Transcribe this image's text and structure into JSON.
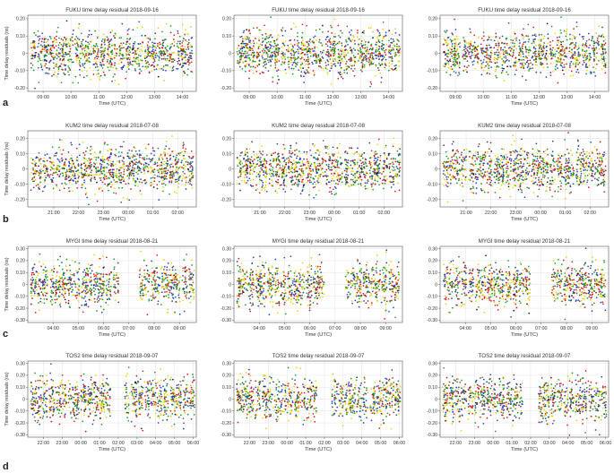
{
  "figure": {
    "row_labels": [
      "a",
      "b",
      "c",
      "d"
    ],
    "series_colors": [
      "#1f3fbf",
      "#d01818",
      "#1a9a1a",
      "#e8d000",
      "#111111"
    ]
  },
  "chart_data": [
    {
      "row": 0,
      "col": 0,
      "type": "scatter",
      "title": "FUKU time delay residual 2018-09-16",
      "xlabel": "Time (UTC)",
      "ylabel": "Time delay residuals (ns)",
      "xlim": [
        "08:27",
        "14:30"
      ],
      "ylim": [
        -0.22,
        0.22
      ],
      "x_ticks": [
        "09:00",
        "10:00",
        "11:00",
        "12:00",
        "13:00",
        "14:00"
      ],
      "y_ticks": [
        "-0.20",
        "-0.10",
        "0",
        "0.10",
        "0.20"
      ],
      "gaps": []
    },
    {
      "row": 0,
      "col": 1,
      "type": "scatter",
      "title": "FUKU time delay residual 2018-09-16",
      "xlabel": "Time (UTC)",
      "ylabel": "",
      "xlim": [
        "08:27",
        "14:30"
      ],
      "ylim": [
        -0.22,
        0.22
      ],
      "x_ticks": [
        "09:00",
        "10:00",
        "11:00",
        "12:00",
        "13:00",
        "14:00"
      ],
      "y_ticks": [
        "-0.20",
        "-0.10",
        "0",
        "0.10",
        "0.20"
      ],
      "gaps": []
    },
    {
      "row": 0,
      "col": 2,
      "type": "scatter",
      "title": "FUKU time delay residual 2018-09-16",
      "xlabel": "Time (UTC)",
      "ylabel": "",
      "xlim": [
        "08:27",
        "14:30"
      ],
      "ylim": [
        -0.22,
        0.22
      ],
      "x_ticks": [
        "09:00",
        "10:00",
        "11:00",
        "12:00",
        "13:00",
        "14:00"
      ],
      "y_ticks": [
        "-0.20",
        "-0.10",
        "0",
        "0.10",
        "0.20"
      ],
      "gaps": []
    },
    {
      "row": 1,
      "col": 0,
      "type": "scatter",
      "title": "KUM2 time delay residual 2018-07-08",
      "xlabel": "Time (UTC)",
      "ylabel": "Time delay residuals (ns)",
      "xlim": [
        "19:57",
        "02:45"
      ],
      "ylim": [
        -0.25,
        0.25
      ],
      "x_ticks": [
        "21:00",
        "22:00",
        "23:00",
        "00:00",
        "01:00",
        "02:00"
      ],
      "y_ticks": [
        "-0.20",
        "-0.10",
        "0",
        "0.10",
        "0.20"
      ],
      "gaps": []
    },
    {
      "row": 1,
      "col": 1,
      "type": "scatter",
      "title": "KUM2 time delay residual 2018-07-08",
      "xlabel": "Time (UTC)",
      "ylabel": "",
      "xlim": [
        "19:57",
        "02:45"
      ],
      "ylim": [
        -0.25,
        0.25
      ],
      "x_ticks": [
        "21:00",
        "22:00",
        "23:00",
        "00:00",
        "01:00",
        "02:00"
      ],
      "y_ticks": [
        "-0.20",
        "-0.10",
        "0",
        "0.10",
        "0.20"
      ],
      "gaps": []
    },
    {
      "row": 1,
      "col": 2,
      "type": "scatter",
      "title": "KUM2 time delay residual 2018-07-08",
      "xlabel": "Time (UTC)",
      "ylabel": "",
      "xlim": [
        "19:57",
        "02:45"
      ],
      "ylim": [
        -0.25,
        0.25
      ],
      "x_ticks": [
        "21:00",
        "22:00",
        "23:00",
        "00:00",
        "01:00",
        "02:00"
      ],
      "y_ticks": [
        "-0.20",
        "-0.10",
        "0",
        "0.10",
        "0.20"
      ],
      "gaps": []
    },
    {
      "row": 2,
      "col": 0,
      "type": "scatter",
      "title": "MYGI time delay residual 2018-08-21",
      "xlabel": "Time (UTC)",
      "ylabel": "Time delay residuals (ns)",
      "xlim": [
        "03:00",
        "09:40"
      ],
      "ylim": [
        -0.32,
        0.32
      ],
      "x_ticks": [
        "04:00",
        "05:00",
        "06:00",
        "07:00",
        "08:00",
        "09:00"
      ],
      "y_ticks": [
        "-0.30",
        "-0.20",
        "-0.10",
        "0",
        "0.10",
        "0.20",
        "0.30"
      ],
      "gaps": [
        [
          "06:40",
          "07:25"
        ]
      ]
    },
    {
      "row": 2,
      "col": 1,
      "type": "scatter",
      "title": "MYGI time delay residual 2018-08-21",
      "xlabel": "Time (UTC)",
      "ylabel": "",
      "xlim": [
        "03:00",
        "09:40"
      ],
      "ylim": [
        -0.32,
        0.32
      ],
      "x_ticks": [
        "04:00",
        "05:00",
        "06:00",
        "07:00",
        "08:00",
        "09:00"
      ],
      "y_ticks": [
        "-0.30",
        "-0.20",
        "-0.10",
        "0",
        "0.10",
        "0.20",
        "0.30"
      ],
      "gaps": [
        [
          "06:40",
          "07:25"
        ]
      ]
    },
    {
      "row": 2,
      "col": 2,
      "type": "scatter",
      "title": "MYGI time delay residual 2018-08-21",
      "xlabel": "Time (UTC)",
      "ylabel": "",
      "xlim": [
        "03:00",
        "09:40"
      ],
      "ylim": [
        -0.32,
        0.32
      ],
      "x_ticks": [
        "04:00",
        "05:00",
        "06:00",
        "07:00",
        "08:00",
        "09:00"
      ],
      "y_ticks": [
        "-0.30",
        "-0.20",
        "-0.10",
        "0",
        "0.10",
        "0.20",
        "0.30"
      ],
      "gaps": [
        [
          "06:40",
          "07:25"
        ]
      ]
    },
    {
      "row": 3,
      "col": 0,
      "type": "scatter",
      "title": "TOS2 time delay residual 2018-09-07",
      "xlabel": "Time (UTC)",
      "ylabel": "Time delay residuals (ns)",
      "xlim": [
        "21:10",
        "06:10"
      ],
      "ylim": [
        -0.32,
        0.32
      ],
      "x_ticks": [
        "22:00",
        "23:00",
        "00:00",
        "01:00",
        "02:00",
        "03:00",
        "04:00",
        "05:00",
        "06:00"
      ],
      "y_ticks": [
        "-0.30",
        "-0.20",
        "-0.10",
        "0",
        "0.10",
        "0.20",
        "0.30"
      ],
      "gaps": [
        [
          "01:35",
          "02:20"
        ]
      ]
    },
    {
      "row": 3,
      "col": 1,
      "type": "scatter",
      "title": "TOS2 time delay residual 2018-09-07",
      "xlabel": "Time (UTC)",
      "ylabel": "",
      "xlim": [
        "21:10",
        "06:10"
      ],
      "ylim": [
        -0.32,
        0.32
      ],
      "x_ticks": [
        "22:00",
        "23:00",
        "00:00",
        "01:00",
        "02:00",
        "03:00",
        "04:00",
        "05:00",
        "06:00"
      ],
      "y_ticks": [
        "-0.30",
        "-0.20",
        "-0.10",
        "0",
        "0.10",
        "0.20",
        "0.30"
      ],
      "gaps": [
        [
          "01:35",
          "02:20"
        ]
      ]
    },
    {
      "row": 3,
      "col": 2,
      "type": "scatter",
      "title": "TOS2 time delay residual 2018-09-07",
      "xlabel": "Time (UTC)",
      "ylabel": "",
      "xlim": [
        "21:10",
        "06:10"
      ],
      "ylim": [
        -0.32,
        0.32
      ],
      "x_ticks": [
        "22:00",
        "23:00",
        "00:00",
        "01:00",
        "02:00",
        "03:00",
        "04:00",
        "05:00",
        "06:00"
      ],
      "y_ticks": [
        "-0.30",
        "-0.20",
        "-0.10",
        "0",
        "0.10",
        "0.20",
        "0.30"
      ],
      "gaps": [
        [
          "01:35",
          "02:20"
        ]
      ]
    }
  ]
}
